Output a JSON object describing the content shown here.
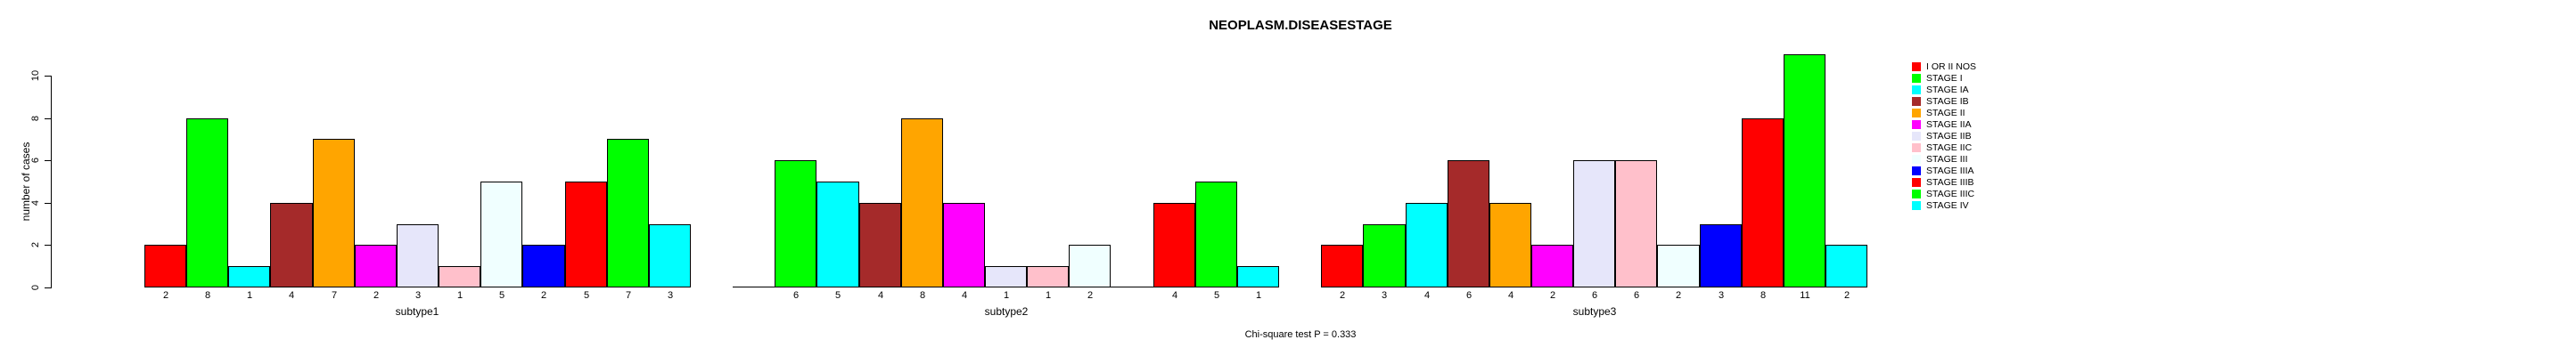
{
  "chart_data": {
    "type": "bar",
    "title": "NEOPLASM.DISEASESTAGE",
    "ylabel": "number of cases",
    "xlabel": "",
    "annotation": "Chi-square test P = 0.333",
    "ylim": [
      0,
      10
    ],
    "yticks": [
      0,
      2,
      4,
      6,
      8,
      10
    ],
    "grid": false,
    "legend_position": "right-outside",
    "bar_border_color": "#000000",
    "categories": [
      "I OR II NOS",
      "STAGE I",
      "STAGE IA",
      "STAGE IB",
      "STAGE II",
      "STAGE IIA",
      "STAGE IIB",
      "STAGE IIC",
      "STAGE III",
      "STAGE IIIA",
      "STAGE IIIB",
      "STAGE IIIC",
      "STAGE IV"
    ],
    "palette": [
      "#ff0000",
      "#00ff00",
      "#00ffff",
      "#a52a2a",
      "#ffa500",
      "#ff00ff",
      "#e6e6fa",
      "#ffc0cb",
      "#f0ffff",
      "#0000ff",
      "#ff0000",
      "#00ff00",
      "#00ffff"
    ],
    "groups": [
      {
        "label": "subtype1",
        "values": [
          2,
          8,
          1,
          4,
          7,
          2,
          3,
          1,
          5,
          2,
          5,
          7,
          3
        ]
      },
      {
        "label": "subtype2",
        "values": [
          0,
          6,
          5,
          4,
          8,
          4,
          1,
          1,
          2,
          0,
          4,
          5,
          1
        ]
      },
      {
        "label": "subtype3",
        "values": [
          2,
          3,
          4,
          6,
          4,
          2,
          6,
          6,
          2,
          3,
          8,
          11,
          2
        ]
      }
    ],
    "zero_value_bars": "drawn as flat baseline segment, no label"
  }
}
